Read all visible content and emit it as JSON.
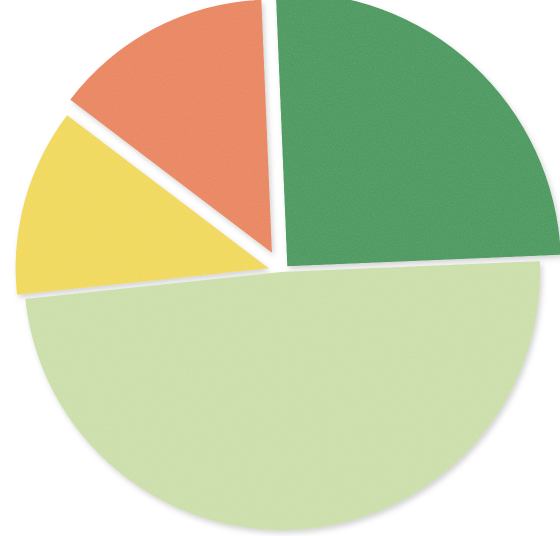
{
  "chart_data": {
    "type": "pie",
    "title": "",
    "slices": [
      {
        "value": 12,
        "color": "#f6dd55"
      },
      {
        "value": 14,
        "color": "#ee855a"
      },
      {
        "value": 25,
        "color": "#3f9a58"
      },
      {
        "value": 49,
        "color": "#cfe3ac"
      }
    ],
    "legend": "none",
    "grid": false,
    "style": "paper-cutout"
  }
}
